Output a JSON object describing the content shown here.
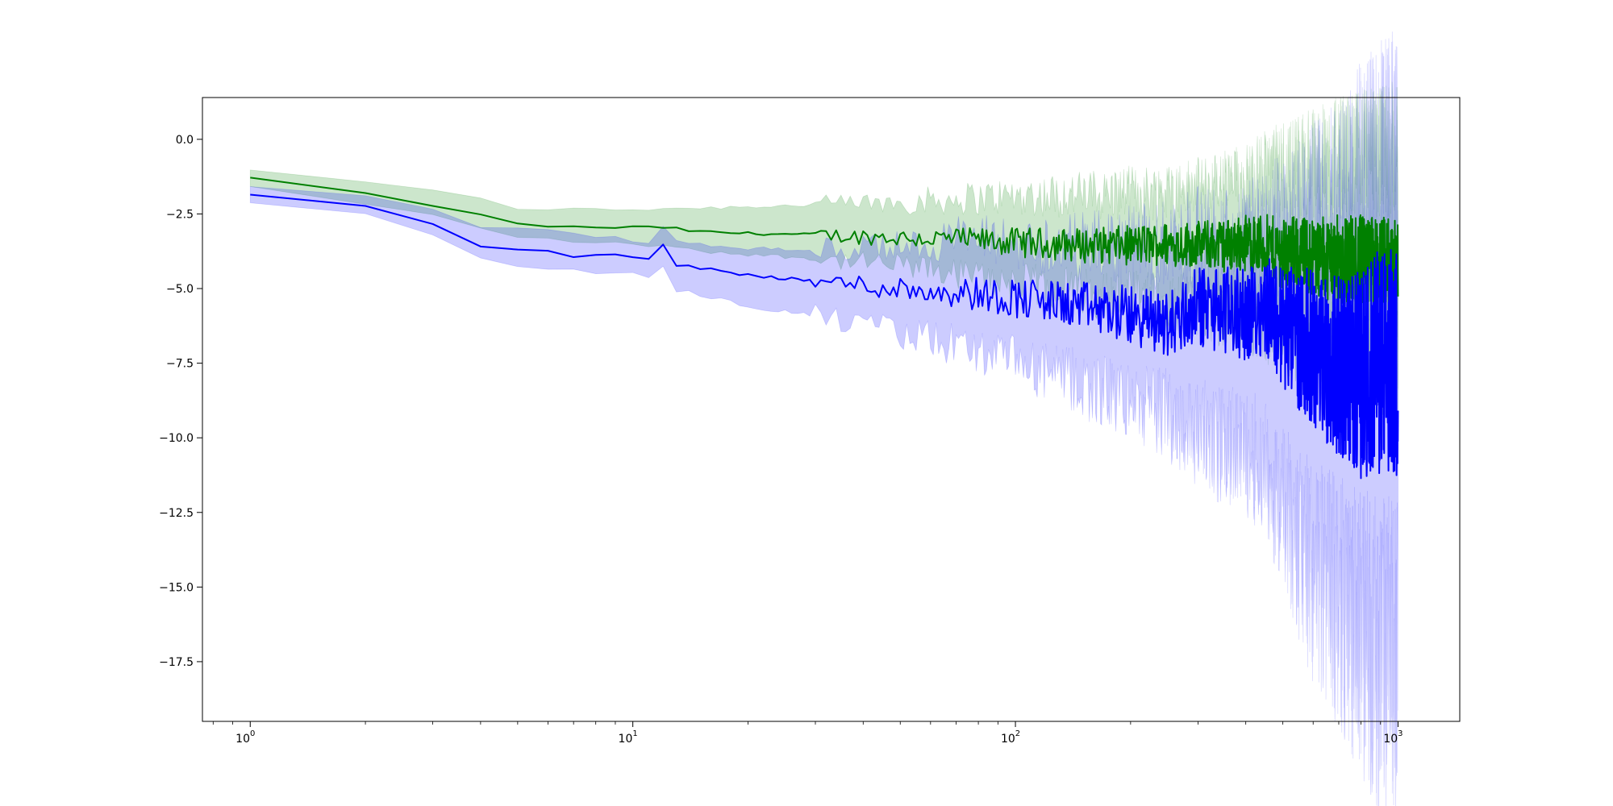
{
  "chart_data": {
    "type": "line",
    "title": "",
    "xlabel": "",
    "ylabel": "",
    "xscale": "log",
    "xlim": [
      0.75,
      1450
    ],
    "ylim": [
      -19.5,
      1.4
    ],
    "grid": false,
    "legend": "none",
    "x_ticks": [
      {
        "base": "10",
        "exp": "0",
        "value": 1
      },
      {
        "base": "10",
        "exp": "1",
        "value": 10
      },
      {
        "base": "10",
        "exp": "2",
        "value": 100
      },
      {
        "base": "10",
        "exp": "3",
        "value": 1000
      }
    ],
    "y_ticks": [
      {
        "label": "0.0",
        "value": 0
      },
      {
        "label": "−2.5",
        "value": -2.5
      },
      {
        "label": "−5.0",
        "value": -5
      },
      {
        "label": "−7.5",
        "value": -7.5
      },
      {
        "label": "−10.0",
        "value": -10
      },
      {
        "label": "−12.5",
        "value": -12.5
      },
      {
        "label": "−15.0",
        "value": -15
      },
      {
        "label": "−17.5",
        "value": -17.5
      }
    ],
    "series": [
      {
        "color": "#008000",
        "band_color": "#008000",
        "band_opacity": 0.2,
        "x": [
          1,
          2,
          3,
          4,
          5,
          6,
          7,
          8,
          9,
          10,
          11,
          12,
          13,
          15,
          20,
          30,
          50,
          70,
          100,
          150,
          200,
          250,
          300,
          350,
          400,
          450,
          500,
          600,
          700,
          800,
          900,
          1000
        ],
        "mean": [
          -1.3,
          -1.85,
          -2.2,
          -2.55,
          -2.85,
          -2.9,
          -2.95,
          -2.95,
          -2.95,
          -2.95,
          -2.95,
          -2.95,
          -3.0,
          -3.1,
          -3.15,
          -3.2,
          -3.3,
          -3.35,
          -3.45,
          -3.55,
          -3.55,
          -3.5,
          -3.5,
          -3.55,
          -3.45,
          -3.6,
          -3.8,
          -3.9,
          -4.0,
          -4.1,
          -4.2,
          -4.3
        ],
        "upper": [
          -1.0,
          -1.45,
          -1.75,
          -2.0,
          -2.3,
          -2.32,
          -2.35,
          -2.35,
          -2.35,
          -2.35,
          -2.33,
          -2.3,
          -2.3,
          -2.3,
          -2.25,
          -2.2,
          -2.1,
          -2.0,
          -1.9,
          -1.85,
          -1.8,
          -1.75,
          -1.7,
          -1.55,
          -1.4,
          -1.2,
          -1.0,
          -0.8,
          -0.6,
          -0.5,
          -0.4,
          -0.3
        ],
        "lower": [
          -1.6,
          -2.2,
          -2.55,
          -2.95,
          -3.3,
          -3.35,
          -3.4,
          -3.45,
          -3.5,
          -3.5,
          -3.55,
          -3.55,
          -3.65,
          -3.75,
          -3.85,
          -4.0,
          -4.25,
          -4.5,
          -4.8,
          -5.1,
          -5.3,
          -5.45,
          -5.55,
          -5.75,
          -5.8,
          -6.1,
          -6.3,
          -6.6,
          -6.8,
          -7.0,
          -7.0,
          -6.9
        ]
      },
      {
        "color": "#0000ff",
        "band_color": "#0000ff",
        "band_opacity": 0.2,
        "x": [
          1,
          2,
          3,
          4,
          5,
          6,
          7,
          8,
          9,
          10,
          11,
          12,
          13,
          15,
          20,
          30,
          50,
          70,
          100,
          150,
          200,
          250,
          300,
          350,
          400,
          450,
          500,
          600,
          700,
          800,
          900,
          1000
        ],
        "mean": [
          -1.85,
          -2.25,
          -2.85,
          -3.55,
          -3.7,
          -3.75,
          -3.9,
          -3.9,
          -3.9,
          -3.95,
          -4.05,
          -3.55,
          -4.2,
          -4.3,
          -4.55,
          -4.75,
          -5.0,
          -5.1,
          -5.3,
          -5.6,
          -5.9,
          -6.2,
          -5.6,
          -5.7,
          -5.9,
          -5.5,
          -6.3,
          -7.0,
          -7.6,
          -7.9,
          -7.4,
          -7.5
        ],
        "upper": [
          -1.55,
          -1.95,
          -2.35,
          -2.9,
          -3.0,
          -3.05,
          -3.2,
          -3.25,
          -3.3,
          -3.4,
          -3.45,
          -2.85,
          -3.45,
          -3.5,
          -3.65,
          -3.7,
          -3.6,
          -3.3,
          -3.5,
          -3.6,
          -3.6,
          -3.5,
          -3.4,
          -3.4,
          -3.5,
          -3.3,
          -3.2,
          -3.0,
          -2.6,
          -2.2,
          -1.8,
          -1.6
        ],
        "lower": [
          -2.1,
          -2.55,
          -3.2,
          -4.0,
          -4.25,
          -4.3,
          -4.4,
          -4.45,
          -4.5,
          -4.5,
          -4.6,
          -4.3,
          -5.05,
          -5.2,
          -5.6,
          -5.9,
          -6.5,
          -6.9,
          -7.5,
          -8.2,
          -8.8,
          -9.2,
          -9.8,
          -10.3,
          -10.5,
          -11.0,
          -12.5,
          -14.5,
          -15.5,
          -16.5,
          -17.3,
          -17.0
        ]
      }
    ]
  }
}
